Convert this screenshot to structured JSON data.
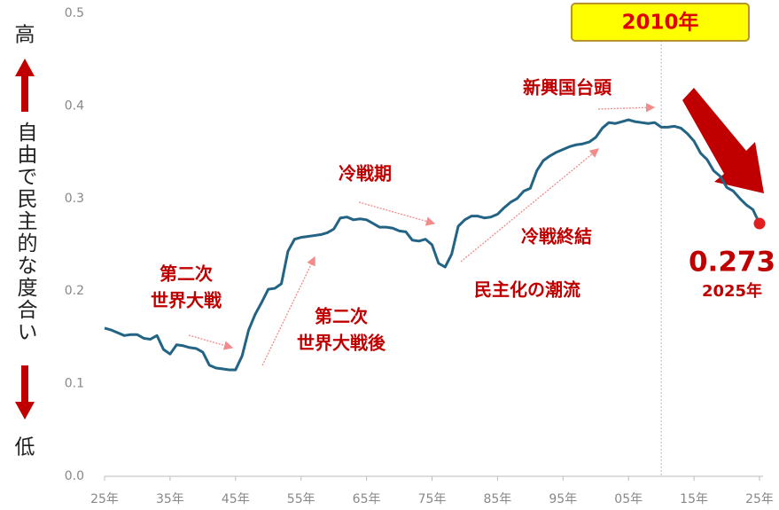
{
  "chart_data": {
    "type": "line",
    "x": [
      1925,
      1926,
      1927,
      1928,
      1929,
      1930,
      1931,
      1932,
      1933,
      1934,
      1935,
      1936,
      1937,
      1938,
      1939,
      1940,
      1941,
      1942,
      1943,
      1944,
      1945,
      1946,
      1947,
      1948,
      1949,
      1950,
      1951,
      1952,
      1953,
      1954,
      1955,
      1956,
      1957,
      1958,
      1959,
      1960,
      1961,
      1962,
      1963,
      1964,
      1965,
      1966,
      1967,
      1968,
      1969,
      1970,
      1971,
      1972,
      1973,
      1974,
      1975,
      1976,
      1977,
      1978,
      1979,
      1980,
      1981,
      1982,
      1983,
      1984,
      1985,
      1986,
      1987,
      1988,
      1989,
      1990,
      1991,
      1992,
      1993,
      1994,
      1995,
      1996,
      1997,
      1998,
      1999,
      2000,
      2001,
      2002,
      2003,
      2004,
      2005,
      2006,
      2007,
      2008,
      2009,
      2010,
      2011,
      2012,
      2013,
      2014,
      2015,
      2016,
      2017,
      2018,
      2019,
      2020,
      2021,
      2022,
      2023,
      2024,
      2025
    ],
    "values": [
      0.16,
      0.158,
      0.155,
      0.152,
      0.153,
      0.153,
      0.149,
      0.148,
      0.152,
      0.137,
      0.132,
      0.142,
      0.141,
      0.139,
      0.138,
      0.134,
      0.12,
      0.117,
      0.116,
      0.115,
      0.115,
      0.13,
      0.158,
      0.175,
      0.188,
      0.202,
      0.203,
      0.208,
      0.243,
      0.256,
      0.258,
      0.259,
      0.26,
      0.261,
      0.263,
      0.267,
      0.279,
      0.28,
      0.277,
      0.278,
      0.277,
      0.273,
      0.269,
      0.269,
      0.268,
      0.265,
      0.264,
      0.255,
      0.254,
      0.256,
      0.25,
      0.23,
      0.226,
      0.24,
      0.27,
      0.277,
      0.281,
      0.281,
      0.279,
      0.28,
      0.283,
      0.29,
      0.296,
      0.3,
      0.308,
      0.311,
      0.33,
      0.341,
      0.346,
      0.35,
      0.353,
      0.356,
      0.358,
      0.359,
      0.361,
      0.366,
      0.376,
      0.382,
      0.381,
      0.383,
      0.385,
      0.383,
      0.382,
      0.381,
      0.382,
      0.377,
      0.377,
      0.378,
      0.376,
      0.37,
      0.362,
      0.349,
      0.342,
      0.33,
      0.324,
      0.312,
      0.308,
      0.3,
      0.293,
      0.288,
      0.273
    ],
    "color": "#236383",
    "end_color": "#e02020",
    "xlim": [
      1925,
      2025
    ],
    "xticks": [
      {
        "value": 1925,
        "label": "25年"
      },
      {
        "value": 1935,
        "label": "35年"
      },
      {
        "value": 1945,
        "label": "45年"
      },
      {
        "value": 1955,
        "label": "55年"
      },
      {
        "value": 1965,
        "label": "65年"
      },
      {
        "value": 1975,
        "label": "75年"
      },
      {
        "value": 1985,
        "label": "85年"
      },
      {
        "value": 1995,
        "label": "95年"
      },
      {
        "value": 2005,
        "label": "05年"
      },
      {
        "value": 2015,
        "label": "15年"
      },
      {
        "value": 2025,
        "label": "25年"
      }
    ],
    "ylim": [
      0,
      0.5
    ],
    "yticks": [
      {
        "value": 0,
        "label": "0.0"
      },
      0.1,
      0.2,
      0.3,
      0.4,
      0.5
    ],
    "grid": false,
    "y_axis_label": "自由で民主的な度合い",
    "y_high_label": "高",
    "y_low_label": "低",
    "highlight": {
      "x": 2010,
      "label": "2010年"
    },
    "end_label_year": "2025年",
    "annotations": [
      {
        "lines": [
          "第二次",
          "世界大戦"
        ]
      },
      {
        "lines": [
          "第二次",
          "世界大戦後"
        ]
      },
      {
        "lines": [
          "冷戦期"
        ]
      },
      {
        "lines": [
          "冷戦終結"
        ]
      },
      {
        "lines": [
          "民主化の潮流"
        ]
      },
      {
        "lines": [
          "新興国台頭"
        ]
      }
    ]
  }
}
